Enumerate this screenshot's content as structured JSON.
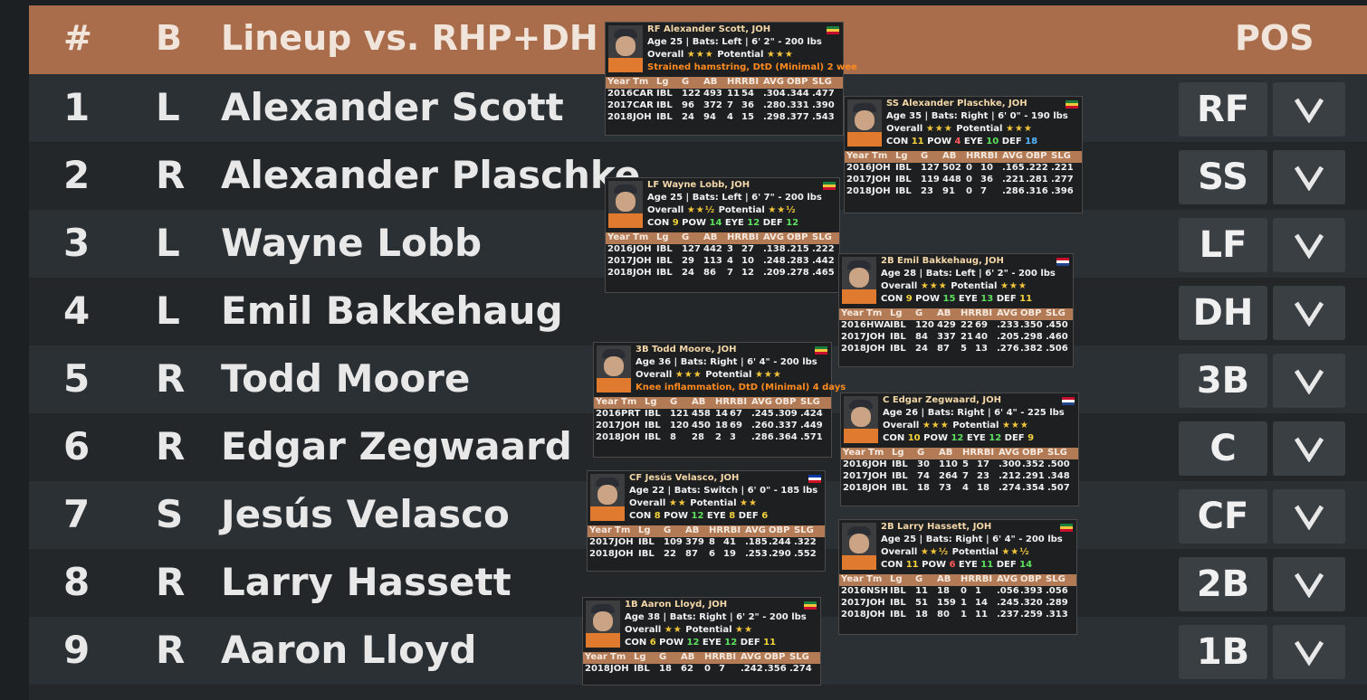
{
  "header": {
    "num": "#",
    "bats": "B",
    "title": "Lineup vs. RHP+DH",
    "pos": "POS"
  },
  "lineup": [
    {
      "num": "1",
      "bats": "L",
      "name": "Alexander Scott",
      "pos": "RF"
    },
    {
      "num": "2",
      "bats": "R",
      "name": "Alexander Plaschke",
      "pos": "SS"
    },
    {
      "num": "3",
      "bats": "L",
      "name": "Wayne Lobb",
      "pos": "LF"
    },
    {
      "num": "4",
      "bats": "L",
      "name": "Emil Bakkehaug",
      "pos": "DH"
    },
    {
      "num": "5",
      "bats": "R",
      "name": "Todd Moore",
      "pos": "3B"
    },
    {
      "num": "6",
      "bats": "R",
      "name": "Edgar Zegwaard",
      "pos": "C"
    },
    {
      "num": "7",
      "bats": "S",
      "name": "Jesús Velasco",
      "pos": "CF"
    },
    {
      "num": "8",
      "bats": "R",
      "name": "Larry Hassett",
      "pos": "2B"
    },
    {
      "num": "9",
      "bats": "R",
      "name": "Aaron Lloyd",
      "pos": "1B"
    }
  ],
  "dropdown_icon": "chevron-down-icon",
  "stat_headers": [
    "Year",
    "Tm",
    "Lg",
    "G",
    "AB",
    "HR",
    "RBI",
    "AVG",
    "OBP",
    "SLG"
  ],
  "labels": {
    "overall": "Overall",
    "potential": "Potential",
    "con": "CON",
    "pow": "POW",
    "eye": "EYE",
    "def": "DEF"
  },
  "colors": {
    "header_bg": "#a96d4b",
    "accent_orange": "#ff8a1e",
    "star": "#f2c63a"
  },
  "cards": [
    {
      "title": "RF Alexander Scott, JOH",
      "info": "Age 25 | Bats: Left | 6' 2\" - 200 lbs",
      "overall": "★★★",
      "potential": "★★★",
      "injury": "Strained hamstring, DtD (Minimal) 2 wee",
      "stats": [
        [
          "2016",
          "CAR",
          "IBL",
          "122",
          "493",
          "11",
          "54",
          ".304",
          ".344",
          ".477"
        ],
        [
          "2017",
          "CAR",
          "IBL",
          "96",
          "372",
          "7",
          "36",
          ".280",
          ".331",
          ".390"
        ],
        [
          "2018",
          "JOH",
          "IBL",
          "24",
          "94",
          "4",
          "15",
          ".298",
          ".377",
          ".543"
        ]
      ]
    },
    {
      "title": "SS Alexander Plaschke, JOH",
      "info": "Age 35 | Bats: Right | 6' 0\" - 190 lbs",
      "overall": "★★★",
      "potential": "★★★",
      "con": "11",
      "pow": "4",
      "eye": "10",
      "def": "18",
      "stats": [
        [
          "2016",
          "JOH",
          "IBL",
          "127",
          "502",
          "0",
          "10",
          ".165",
          ".222",
          ".221"
        ],
        [
          "2017",
          "JOH",
          "IBL",
          "119",
          "448",
          "0",
          "36",
          ".221",
          ".281",
          ".277"
        ],
        [
          "2018",
          "JOH",
          "IBL",
          "23",
          "91",
          "0",
          "7",
          ".286",
          ".316",
          ".396"
        ]
      ]
    },
    {
      "title": "LF Wayne Lobb, JOH",
      "info": "Age 25 | Bats: Left | 6' 7\" - 200 lbs",
      "overall": "★★½",
      "potential": "★★½",
      "con": "9",
      "pow": "14",
      "eye": "12",
      "def": "12",
      "stats": [
        [
          "2016",
          "JOH",
          "IBL",
          "127",
          "442",
          "3",
          "27",
          ".138",
          ".215",
          ".222"
        ],
        [
          "2017",
          "JOH",
          "IBL",
          "29",
          "113",
          "4",
          "10",
          ".248",
          ".283",
          ".442"
        ],
        [
          "2018",
          "JOH",
          "IBL",
          "24",
          "86",
          "7",
          "12",
          ".209",
          ".278",
          ".465"
        ]
      ]
    },
    {
      "title": "2B Emil Bakkehaug, JOH",
      "info": "Age 28 | Bats: Left | 6' 2\" - 200 lbs",
      "overall": "★★★",
      "potential": "★★★",
      "con": "9",
      "pow": "15",
      "eye": "13",
      "def": "11",
      "stats": [
        [
          "2016",
          "HWA",
          "IBL",
          "120",
          "429",
          "22",
          "69",
          ".233",
          ".350",
          ".450"
        ],
        [
          "2017",
          "JOH",
          "IBL",
          "84",
          "337",
          "21",
          "40",
          ".205",
          ".298",
          ".460"
        ],
        [
          "2018",
          "JOH",
          "IBL",
          "24",
          "87",
          "5",
          "13",
          ".276",
          ".382",
          ".506"
        ]
      ]
    },
    {
      "title": "3B Todd Moore, JOH",
      "info": "Age 36 | Bats: Right | 6' 4\" - 200 lbs",
      "overall": "★★★",
      "potential": "★★★",
      "injury": "Knee inflammation, DtD (Minimal) 4 days",
      "stats": [
        [
          "2016",
          "PRT",
          "IBL",
          "121",
          "458",
          "14",
          "67",
          ".245",
          ".309",
          ".424"
        ],
        [
          "2017",
          "JOH",
          "IBL",
          "120",
          "450",
          "18",
          "69",
          ".260",
          ".337",
          ".449"
        ],
        [
          "2018",
          "JOH",
          "IBL",
          "8",
          "28",
          "2",
          "3",
          ".286",
          ".364",
          ".571"
        ]
      ]
    },
    {
      "title": "C Edgar Zegwaard, JOH",
      "info": "Age 26 | Bats: Right | 6' 4\" - 225 lbs",
      "overall": "★★★",
      "potential": "★★★",
      "con": "10",
      "pow": "12",
      "eye": "12",
      "def": "9",
      "stats": [
        [
          "2016",
          "JOH",
          "IBL",
          "30",
          "110",
          "5",
          "17",
          ".300",
          ".352",
          ".500"
        ],
        [
          "2017",
          "JOH",
          "IBL",
          "74",
          "264",
          "7",
          "23",
          ".212",
          ".291",
          ".348"
        ],
        [
          "2018",
          "JOH",
          "IBL",
          "18",
          "73",
          "4",
          "18",
          ".274",
          ".354",
          ".507"
        ]
      ]
    },
    {
      "title": "CF Jesús Velasco, JOH",
      "info": "Age 22 | Bats: Switch | 6' 0\" - 185 lbs",
      "overall": "★★",
      "potential": "★★",
      "con": "8",
      "pow": "12",
      "eye": "8",
      "def": "6",
      "stats": [
        [
          "2017",
          "JOH",
          "IBL",
          "109",
          "379",
          "8",
          "41",
          ".185",
          ".244",
          ".322"
        ],
        [
          "2018",
          "JOH",
          "IBL",
          "22",
          "87",
          "6",
          "19",
          ".253",
          ".290",
          ".552"
        ]
      ]
    },
    {
      "title": "2B Larry Hassett, JOH",
      "info": "Age 25 | Bats: Right | 6' 4\" - 200 lbs",
      "overall": "★★½",
      "potential": "★★½",
      "con": "11",
      "pow": "6",
      "eye": "11",
      "def": "14",
      "stats": [
        [
          "2016",
          "NSH",
          "IBL",
          "11",
          "18",
          "0",
          "1",
          ".056",
          ".393",
          ".056"
        ],
        [
          "2017",
          "JOH",
          "IBL",
          "51",
          "159",
          "1",
          "14",
          ".245",
          ".320",
          ".289"
        ],
        [
          "2018",
          "JOH",
          "IBL",
          "18",
          "80",
          "1",
          "11",
          ".237",
          ".259",
          ".313"
        ]
      ]
    },
    {
      "title": "1B Aaron Lloyd, JOH",
      "info": "Age 38 | Bats: Right | 6' 2\" - 200 lbs",
      "overall": "★★",
      "potential": "★★",
      "con": "6",
      "pow": "12",
      "eye": "12",
      "def": "11",
      "stats": [
        [
          "2018",
          "JOH",
          "IBL",
          "18",
          "62",
          "0",
          "7",
          ".242",
          ".356",
          ".274"
        ]
      ]
    }
  ]
}
